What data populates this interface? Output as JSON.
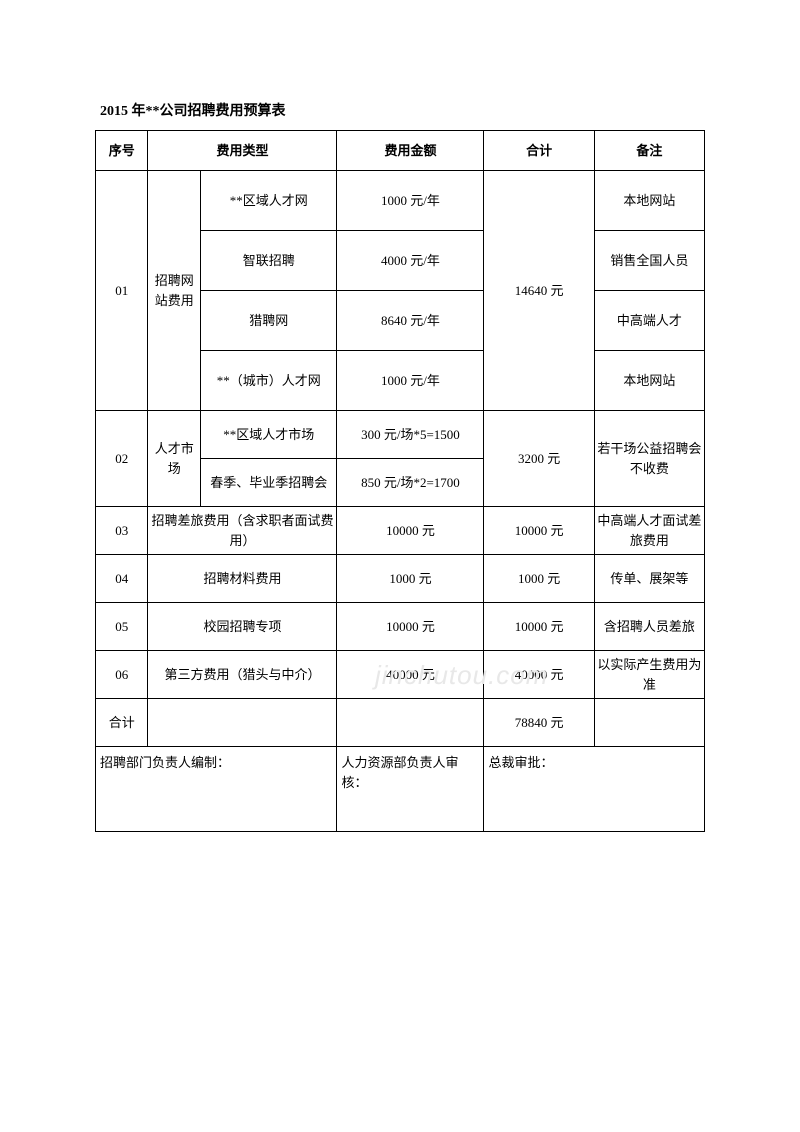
{
  "title": "2015 年**公司招聘费用预算表",
  "headers": {
    "seq": "序号",
    "type": "费用类型",
    "amount": "费用金额",
    "total": "合计",
    "note": "备注"
  },
  "rows": {
    "r01": {
      "seq": "01",
      "category": "招聘网站费用",
      "items": [
        {
          "name": "**区域人才网",
          "amount": "1000 元/年",
          "note": "本地网站"
        },
        {
          "name": "智联招聘",
          "amount": "4000 元/年",
          "note": "销售全国人员"
        },
        {
          "name": "猎聘网",
          "amount": "8640 元/年",
          "note": "中高端人才"
        },
        {
          "name": "**（城市）人才网",
          "amount": "1000 元/年",
          "note": "本地网站"
        }
      ],
      "total": "14640 元"
    },
    "r02": {
      "seq": "02",
      "category": "人才市场",
      "items": [
        {
          "name": "**区域人才市场",
          "amount": "300 元/场*5=1500"
        },
        {
          "name": "春季、毕业季招聘会",
          "amount": "850 元/场*2=1700"
        }
      ],
      "total": "3200 元",
      "note": "若干场公益招聘会不收费"
    },
    "r03": {
      "seq": "03",
      "type": "招聘差旅费用（含求职者面试费用）",
      "amount": "10000 元",
      "total": "10000 元",
      "note": "中高端人才面试差旅费用"
    },
    "r04": {
      "seq": "04",
      "type": "招聘材料费用",
      "amount": "1000 元",
      "total": "1000 元",
      "note": "传单、展架等"
    },
    "r05": {
      "seq": "05",
      "type": "校园招聘专项",
      "amount": "10000 元",
      "total": "10000 元",
      "note": "含招聘人员差旅"
    },
    "r06": {
      "seq": "06",
      "type": "第三方费用（猎头与中介）",
      "amount": "40000 元",
      "total": "40000 元",
      "note": "以实际产生费用为准"
    },
    "totalRow": {
      "label": "合计",
      "total": "78840 元"
    }
  },
  "signatures": {
    "prepare": "招聘部门负责人编制：",
    "review": "人力资源部负责人审核：",
    "approve": "总裁审批："
  },
  "watermark": "jinchutou.com"
}
